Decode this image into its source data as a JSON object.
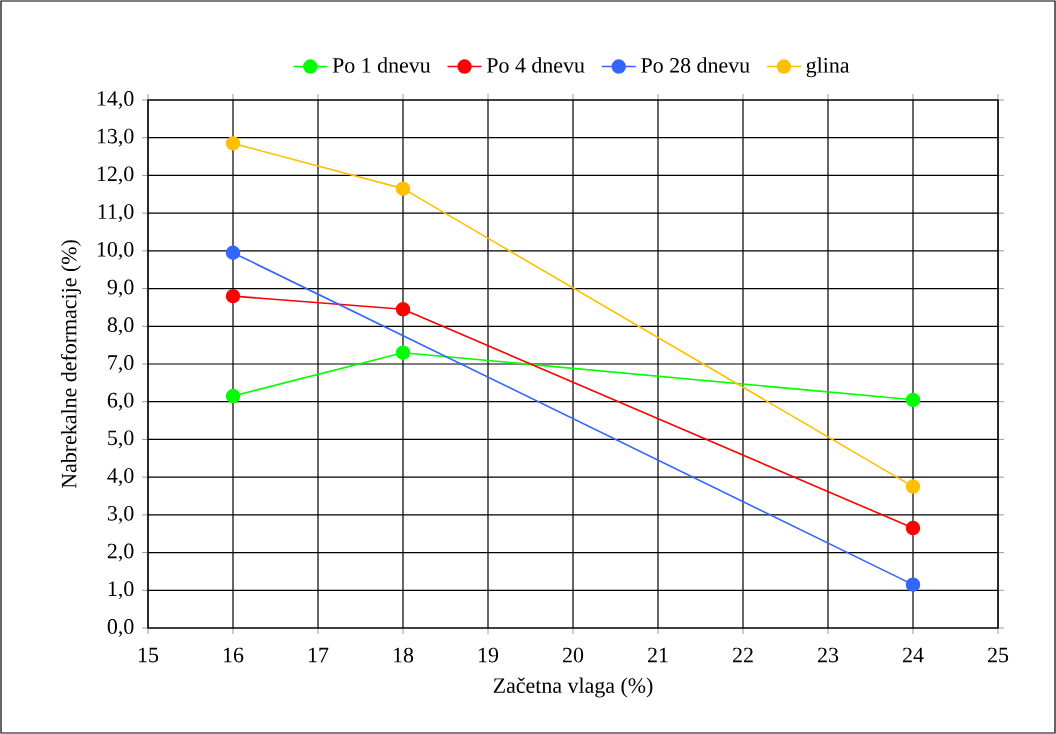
{
  "chart_data": {
    "type": "line",
    "xlabel": "Začetna vlaga (%)",
    "ylabel": "Nabrekalne deformacije (%)",
    "x": [
      16,
      18,
      24
    ],
    "series": [
      {
        "name": "Po 1 dnevu",
        "color": "#00ff00",
        "values": [
          6.15,
          7.3,
          6.05
        ]
      },
      {
        "name": "Po 4 dnevu",
        "color": "#ff0000",
        "values": [
          8.8,
          8.45,
          2.65
        ]
      },
      {
        "name": "Po 28 dnevu",
        "color": "#3366ff",
        "x": [
          16,
          24
        ],
        "values": [
          9.95,
          1.15
        ]
      },
      {
        "name": "glina",
        "color": "#ffc000",
        "values": [
          12.85,
          11.65,
          3.75
        ]
      }
    ],
    "xlim": [
      15,
      25
    ],
    "xticks": [
      15,
      16,
      17,
      18,
      19,
      20,
      21,
      22,
      23,
      24,
      25
    ],
    "ylim": [
      0,
      14
    ],
    "yticks": [
      {
        "value": 0,
        "label": "0,0"
      },
      {
        "value": 1,
        "label": "1,0"
      },
      {
        "value": 2,
        "label": "2,0"
      },
      {
        "value": 3,
        "label": "3,0"
      },
      {
        "value": 4,
        "label": "4,0"
      },
      {
        "value": 5,
        "label": "5,0"
      },
      {
        "value": 6,
        "label": "6,0"
      },
      {
        "value": 7,
        "label": "7,0"
      },
      {
        "value": 8,
        "label": "8,0"
      },
      {
        "value": 9,
        "label": "9,0"
      },
      {
        "value": 10,
        "label": "10,0"
      },
      {
        "value": 11,
        "label": "11,0"
      },
      {
        "value": 12,
        "label": "12,0"
      },
      {
        "value": 13,
        "label": "13,0"
      },
      {
        "value": 14,
        "label": "14,0"
      }
    ],
    "grid": true,
    "legend": "top",
    "marker": "circle",
    "line_style": "solid"
  }
}
